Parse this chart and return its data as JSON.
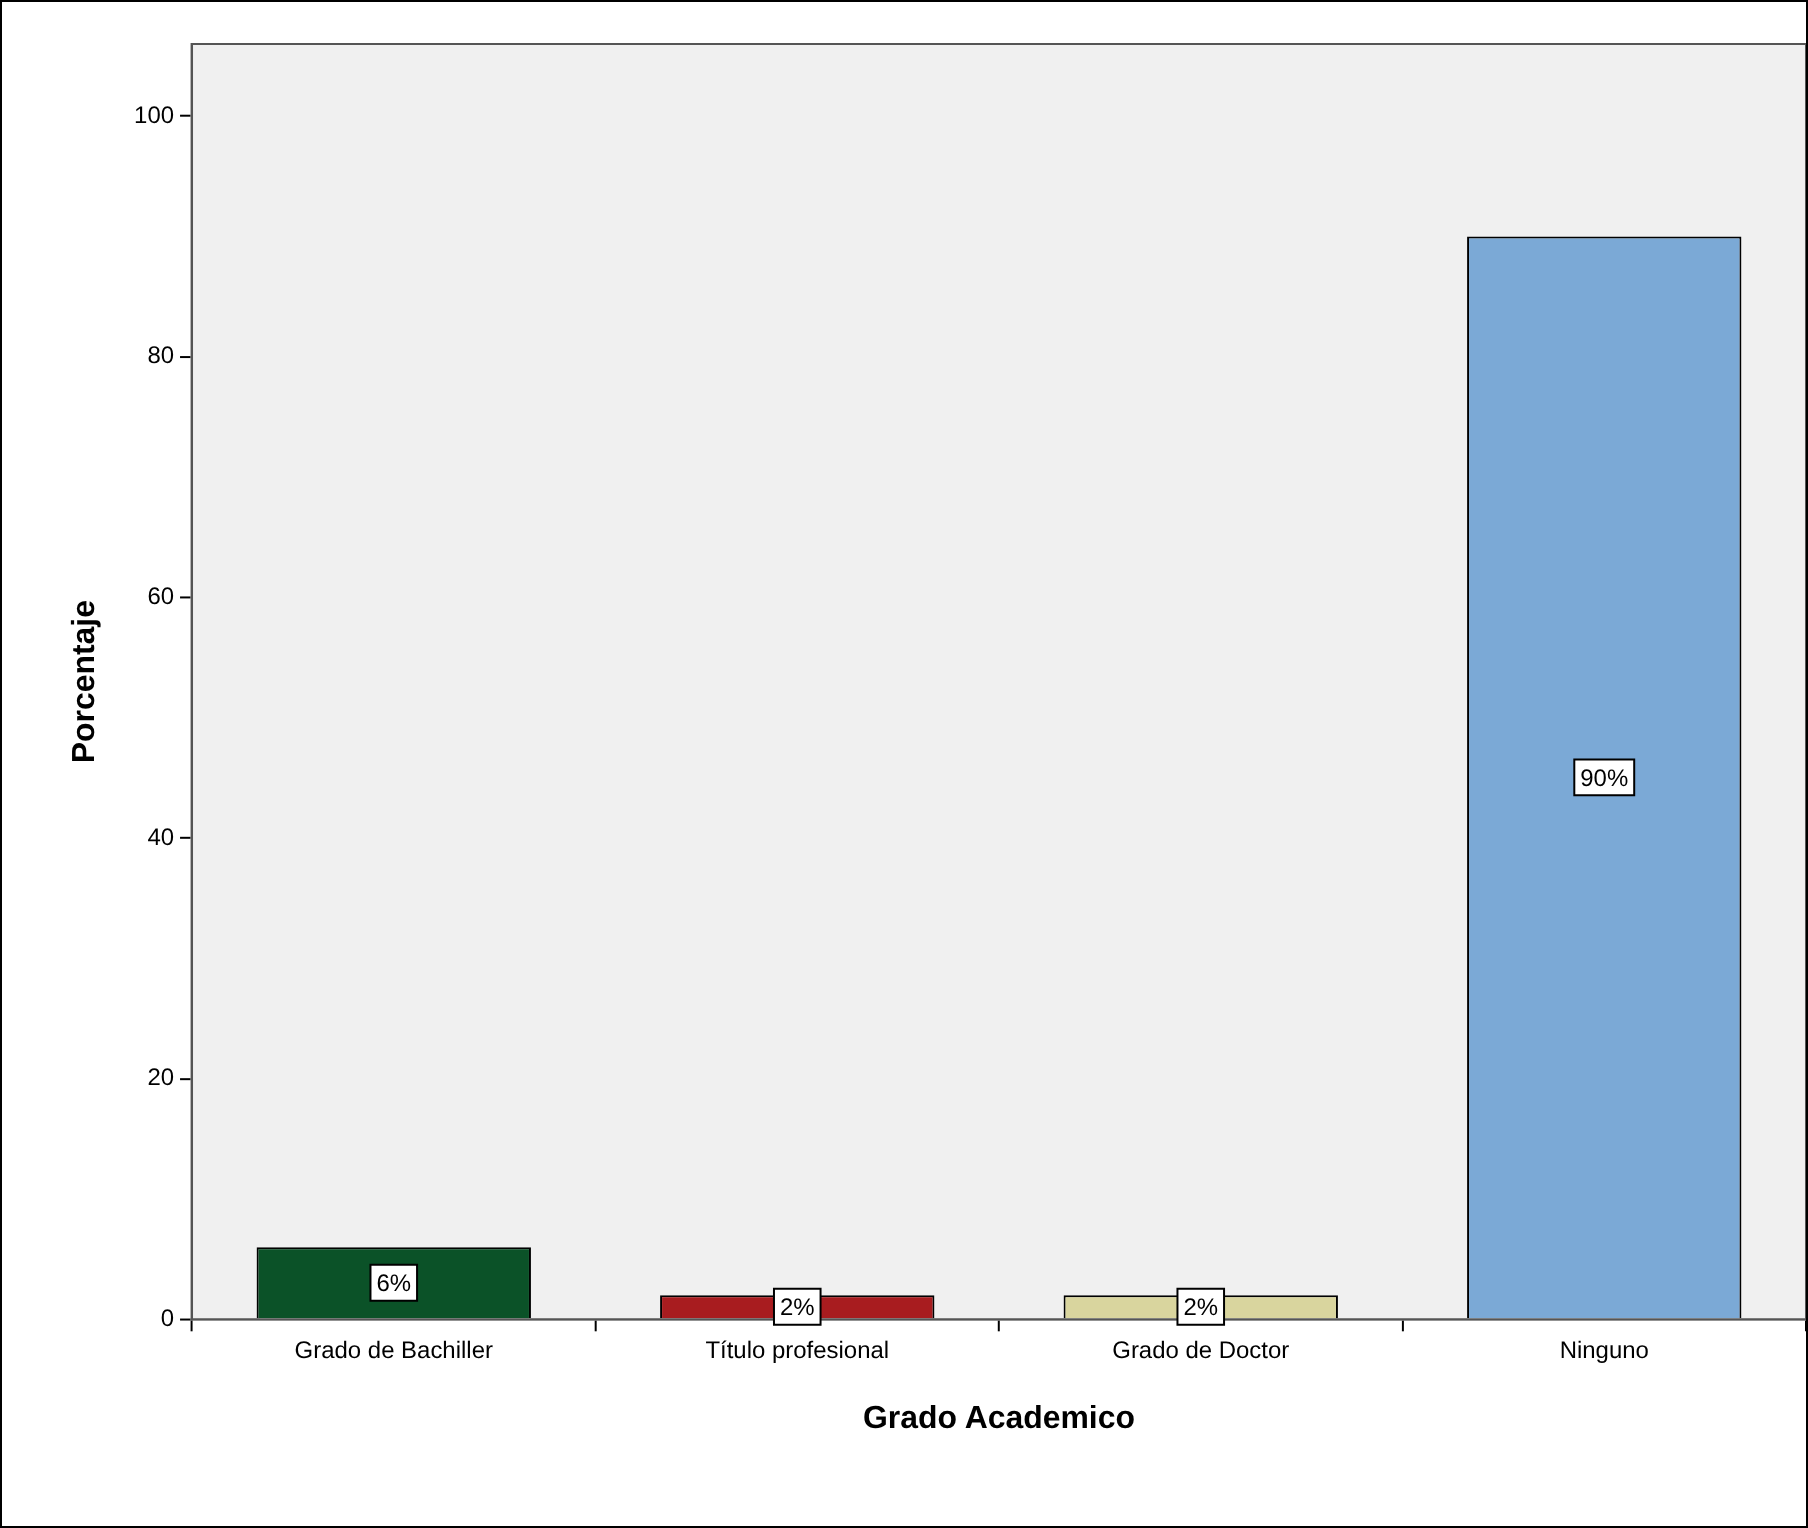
{
  "chart_data": {
    "type": "bar",
    "xlabel": "Grado Academico",
    "ylabel": "Porcentaje",
    "categories": [
      "Grado de Bachiller",
      "Título profesional",
      "Grado de Doctor",
      "Ninguno"
    ],
    "values": [
      6,
      2,
      2,
      90
    ],
    "colors": [
      "#0b5228",
      "#a81c1f",
      "#d9d59e",
      "#7ba9d6"
    ],
    "value_labels": [
      "6%",
      "2%",
      "2%",
      "90%"
    ],
    "ylim": [
      0,
      106
    ],
    "yticks": [
      0,
      20,
      40,
      60,
      80,
      100
    ],
    "grid": false,
    "legend": false
  }
}
